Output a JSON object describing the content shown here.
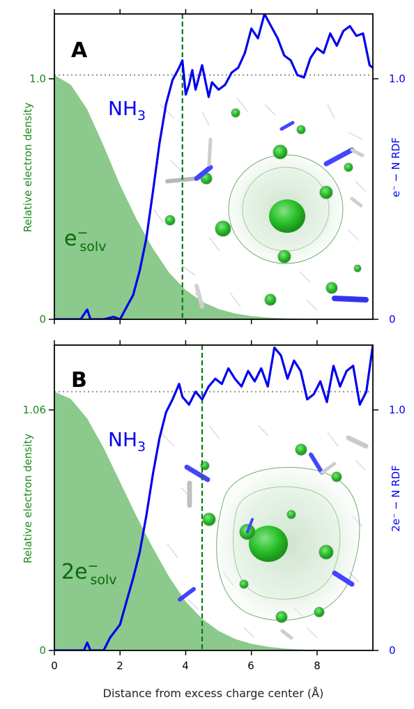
{
  "figure": {
    "xlabel": "Distance from excess charge center (Å)",
    "xticks": [
      "0",
      "2",
      "4",
      "6",
      "8"
    ]
  },
  "colors": {
    "density_fill": "#8cc98c",
    "rdf_line": "#0000ee",
    "left_axis": "#1a8a1a",
    "cutoff_line": "#0a7a0a",
    "reference_line": "#999999"
  },
  "panels": [
    {
      "letter": "A",
      "solvent_label": "NH",
      "solvent_sub": "3",
      "species_prefix": "e",
      "species_sup": "−",
      "species_sub": "solv",
      "left_ylabel": "Relative electron density",
      "right_ylabel": "e⁻ − N RDF",
      "left_ticks": [
        "0",
        "1.0"
      ],
      "right_ticks": [
        "0",
        "1.0"
      ]
    },
    {
      "letter": "B",
      "solvent_label": "NH",
      "solvent_sub": "3",
      "species_prefix": "2e",
      "species_sup": "−",
      "species_sub": "solv",
      "left_ylabel": "Relative electron density",
      "right_ylabel": "2e⁻ − N RDF",
      "left_ticks": [
        "0",
        "1.06"
      ],
      "right_ticks": [
        "0",
        "1.0"
      ]
    }
  ],
  "chart_data": [
    {
      "type": "area",
      "panel": "A",
      "xlim": [
        0,
        9.7
      ],
      "left_ylim": [
        0,
        1.25
      ],
      "right_ylim": [
        0,
        1.25
      ],
      "density": {
        "x": [
          0,
          0.5,
          1.0,
          1.5,
          2.0,
          2.5,
          3.0,
          3.5,
          4.0,
          4.5,
          5.0,
          5.5,
          6.0,
          6.5,
          7.0,
          7.5,
          8.0,
          8.5,
          9.0,
          9.7
        ],
        "y": [
          1.0,
          0.96,
          0.86,
          0.71,
          0.55,
          0.41,
          0.29,
          0.19,
          0.12,
          0.072,
          0.042,
          0.024,
          0.013,
          0.007,
          0.004,
          0.002,
          0.001,
          0.0005,
          0.0002,
          0
        ]
      },
      "rdf": {
        "x": [
          0,
          0.8,
          1.0,
          1.1,
          1.3,
          1.5,
          1.8,
          2.0,
          2.2,
          2.4,
          2.6,
          2.8,
          3.0,
          3.2,
          3.4,
          3.6,
          3.8,
          3.9,
          4.0,
          4.1,
          4.2,
          4.3,
          4.5,
          4.7,
          4.8,
          5.0,
          5.2,
          5.4,
          5.6,
          5.8,
          6.0,
          6.2,
          6.4,
          6.6,
          6.8,
          7.0,
          7.2,
          7.4,
          7.6,
          7.8,
          8.0,
          8.2,
          8.4,
          8.6,
          8.8,
          9.0,
          9.2,
          9.4,
          9.6,
          9.7
        ],
        "y": [
          0,
          0,
          0.04,
          0,
          0,
          0,
          0.01,
          0,
          0.05,
          0.1,
          0.2,
          0.33,
          0.52,
          0.72,
          0.88,
          0.98,
          1.03,
          1.06,
          0.92,
          0.96,
          1.02,
          0.94,
          1.04,
          0.91,
          0.97,
          0.94,
          0.96,
          1.01,
          1.03,
          1.09,
          1.19,
          1.15,
          1.25,
          1.2,
          1.15,
          1.08,
          1.06,
          1.0,
          0.99,
          1.07,
          1.11,
          1.09,
          1.17,
          1.12,
          1.18,
          1.2,
          1.16,
          1.17,
          1.04,
          1.03
        ]
      },
      "cutoff_x": 3.9,
      "reference_y": 1.0
    },
    {
      "type": "area",
      "panel": "B",
      "xlim": [
        0,
        9.7
      ],
      "left_ylim": [
        0,
        1.2508
      ],
      "right_ylim": [
        0,
        1.18
      ],
      "density": {
        "x": [
          0,
          0.5,
          1.0,
          1.5,
          2.0,
          2.5,
          3.0,
          3.5,
          4.0,
          4.5,
          5.0,
          5.5,
          6.0,
          6.5,
          7.0,
          7.5,
          8.0,
          8.5,
          9.0,
          9.7
        ],
        "y": [
          1.06,
          1.03,
          0.95,
          0.83,
          0.69,
          0.55,
          0.42,
          0.3,
          0.2,
          0.13,
          0.08,
          0.047,
          0.027,
          0.015,
          0.008,
          0.004,
          0.002,
          0.001,
          0.0005,
          0
        ]
      },
      "rdf": {
        "x": [
          0,
          0.9,
          1.0,
          1.1,
          1.5,
          1.7,
          2.0,
          2.2,
          2.4,
          2.6,
          2.8,
          3.0,
          3.2,
          3.4,
          3.6,
          3.8,
          3.9,
          4.1,
          4.3,
          4.5,
          4.7,
          4.9,
          5.1,
          5.3,
          5.5,
          5.7,
          5.9,
          6.1,
          6.3,
          6.5,
          6.7,
          6.9,
          7.1,
          7.3,
          7.5,
          7.7,
          7.9,
          8.1,
          8.3,
          8.5,
          8.7,
          8.9,
          9.1,
          9.3,
          9.5,
          9.7
        ],
        "y": [
          0,
          0,
          0.03,
          0,
          0,
          0.05,
          0.1,
          0.19,
          0.28,
          0.38,
          0.52,
          0.68,
          0.82,
          0.92,
          0.97,
          1.03,
          0.98,
          0.95,
          1.0,
          0.97,
          1.02,
          1.05,
          1.03,
          1.09,
          1.05,
          1.02,
          1.08,
          1.04,
          1.09,
          1.02,
          1.17,
          1.14,
          1.05,
          1.12,
          1.08,
          0.97,
          0.99,
          1.04,
          0.96,
          1.1,
          1.02,
          1.08,
          1.1,
          0.95,
          1.0,
          1.18
        ]
      },
      "cutoff_x": 4.5,
      "reference_y": 1.0
    }
  ]
}
